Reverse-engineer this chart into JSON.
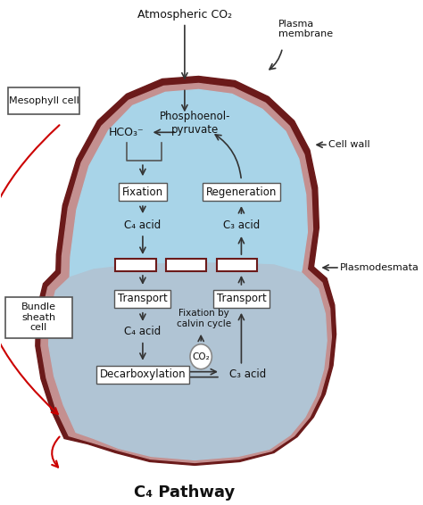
{
  "title": "C₄ Pathway",
  "title_fontsize": 13,
  "bg_color": "#ffffff",
  "mesophyll_cell_color": "#a8d4e8",
  "bundle_sheath_color": "#b0c4d4",
  "cell_wall_color": "#6b1a1a",
  "cell_wall_mid_color": "#c49090",
  "box_color": "white",
  "arrow_color": "#333333",
  "red_arrow_color": "#cc0000",
  "text_color": "#111111",
  "label_top": "Atmospheric CO₂",
  "label_plasma": "Plasma\nmembrane",
  "label_cellwall": "Cell wall",
  "label_plasmodesmata": "Plasmodesmata",
  "label_mesophyll": "Mesophyll cell",
  "label_bundle": "Bundle\nsheath\ncell",
  "label_hco3": "HCO₃⁻",
  "label_phosphoenol": "Phosphoenol-\npyruvate",
  "label_fixation": "Fixation",
  "label_regeneration": "Regeneration",
  "label_c4acid_meso": "C₄ acid",
  "label_c3acid_meso": "C₃ acid",
  "label_transport1": "Transport",
  "label_transport2": "Transport",
  "label_fixation_calvin": "Fixation by\ncalvin cycle",
  "label_c4acid_bundle": "C₄ acid",
  "label_c3acid_bundle": "C₃ acid",
  "label_decarboxylation": "Decarboxylation",
  "label_co2": "CO₂"
}
